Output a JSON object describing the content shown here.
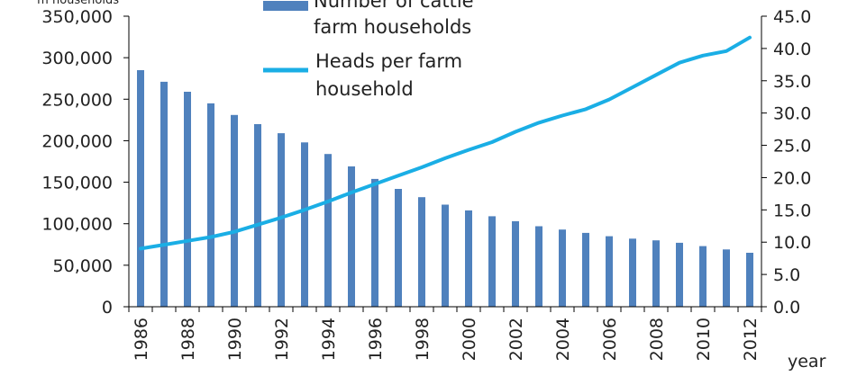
{
  "chart_data": {
    "type": "bar",
    "categories": [
      "1986",
      "1987",
      "1988",
      "1989",
      "1990",
      "1991",
      "1992",
      "1993",
      "1994",
      "1995",
      "1996",
      "1997",
      "1998",
      "1999",
      "2000",
      "2001",
      "2002",
      "2003",
      "2004",
      "2005",
      "2006",
      "2007",
      "2008",
      "2009",
      "2010",
      "2011",
      "2012"
    ],
    "x_tick_labels": [
      "1986",
      "1988",
      "1990",
      "1992",
      "1994",
      "1996",
      "1998",
      "2000",
      "2002",
      "2004",
      "2006",
      "2008",
      "2010",
      "2012"
    ],
    "xlabel": "year",
    "y_left_label": "m households",
    "ylim_left": [
      0,
      350000
    ],
    "y_left_ticks": [
      "0",
      "50,000",
      "100,000",
      "150,000",
      "200,000",
      "250,000",
      "300,000",
      "350,000"
    ],
    "ylim_right": [
      0,
      45
    ],
    "y_right_ticks": [
      "0.0",
      "5.0",
      "10.0",
      "15.0",
      "20.0",
      "25.0",
      "30.0",
      "35.0",
      "40.0",
      "45.0"
    ],
    "grid": false,
    "legend_position": "top",
    "series": [
      {
        "name": "Number of cattle farm households",
        "type": "bar",
        "axis": "left",
        "color": "#4f81bd",
        "values": [
          285000,
          271000,
          259000,
          245000,
          231000,
          220000,
          209000,
          198000,
          184000,
          169000,
          154000,
          142000,
          132000,
          123000,
          116000,
          109000,
          103000,
          97000,
          93000,
          89000,
          85000,
          82000,
          80000,
          77000,
          73000,
          69000,
          65000
        ]
      },
      {
        "name": "Heads per farm household",
        "type": "line",
        "axis": "right",
        "color": "#1aaee5",
        "values": [
          9.0,
          9.6,
          10.2,
          10.8,
          11.6,
          12.7,
          13.8,
          15.0,
          16.3,
          17.7,
          19.0,
          20.3,
          21.6,
          23.0,
          24.3,
          25.5,
          27.1,
          28.5,
          29.6,
          30.6,
          32.1,
          34.0,
          35.9,
          37.8,
          38.9,
          39.6,
          41.7
        ]
      }
    ]
  }
}
